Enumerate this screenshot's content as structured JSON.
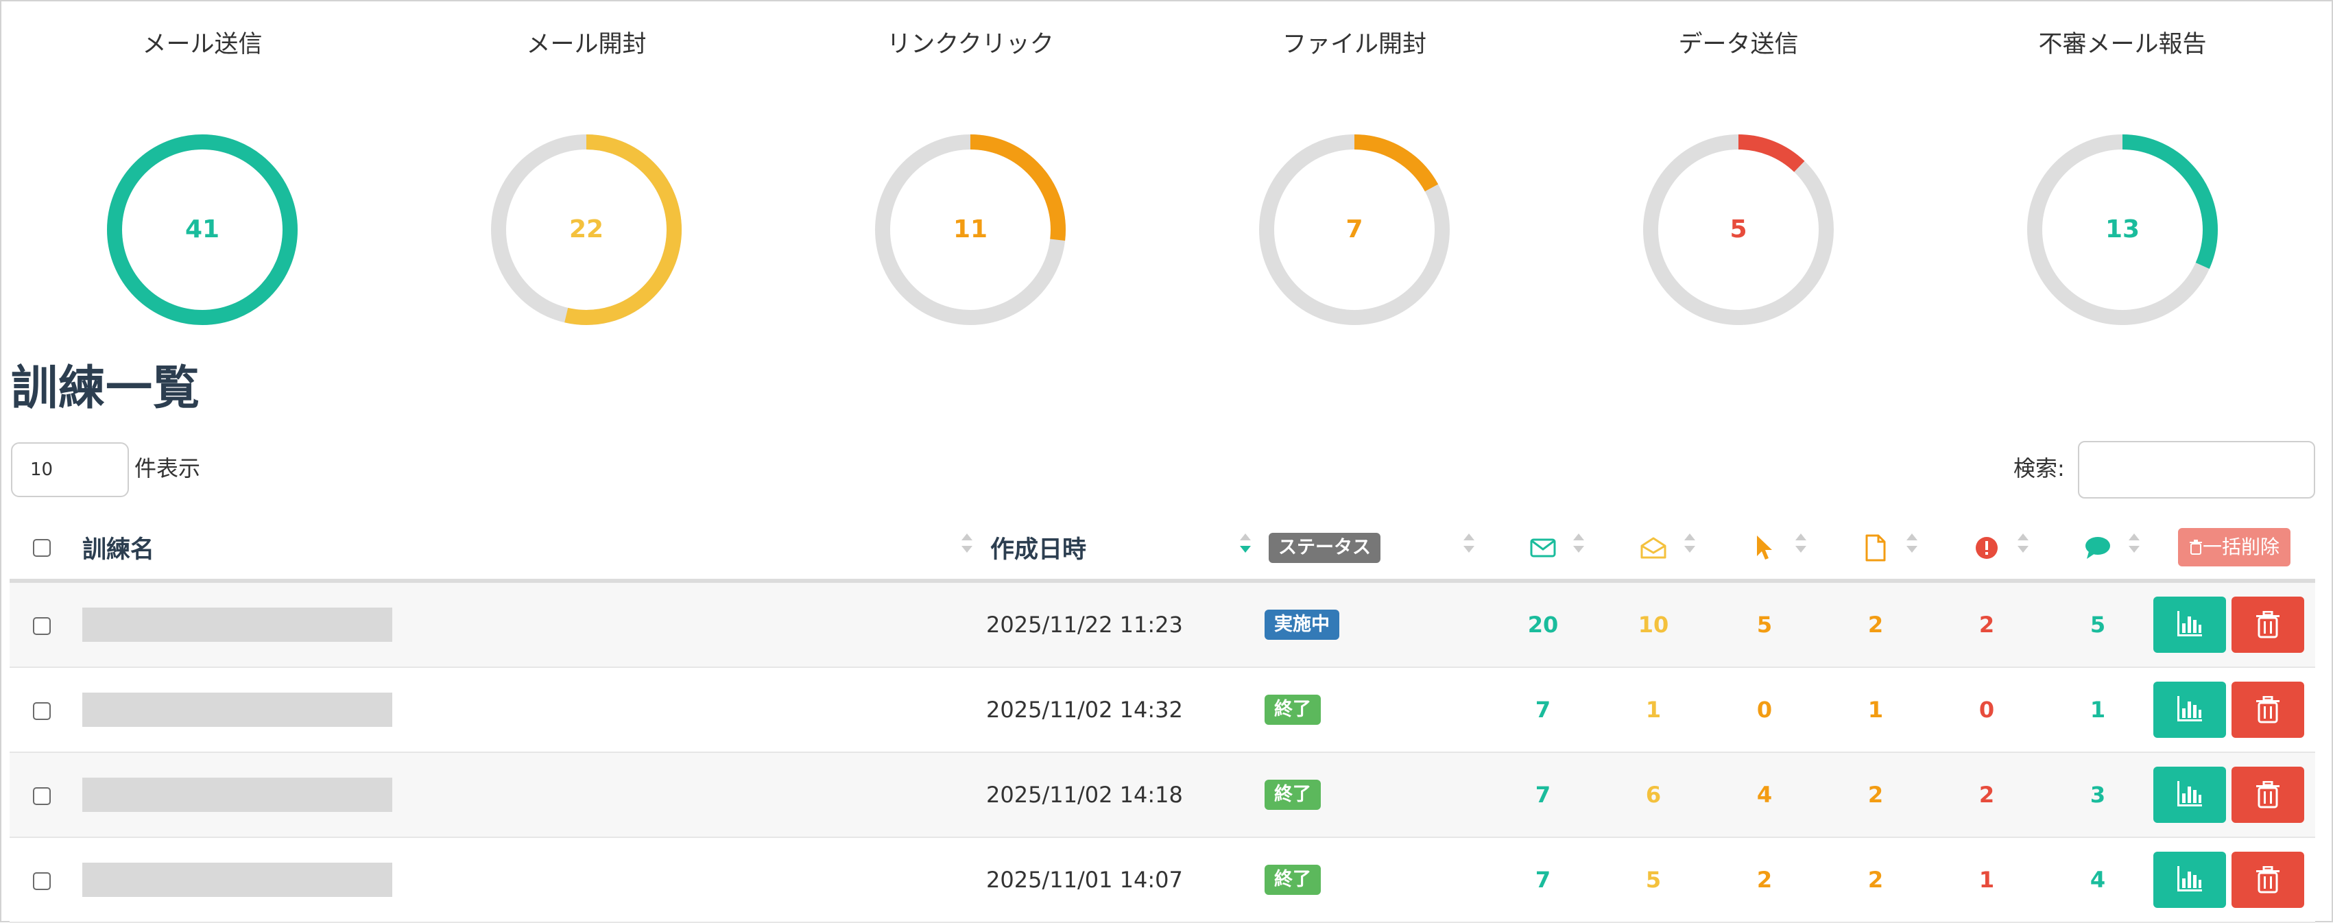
{
  "stats": [
    {
      "title": "メール送信",
      "value": "41",
      "fraction": 1.0,
      "color": "#1abc9c"
    },
    {
      "title": "メール開封",
      "value": "22",
      "fraction": 0.5366,
      "color": "#f4c13d"
    },
    {
      "title": "リンククリック",
      "value": "11",
      "fraction": 0.2683,
      "color": "#f39c12"
    },
    {
      "title": "ファイル開封",
      "value": "7",
      "fraction": 0.1707,
      "color": "#f39c12"
    },
    {
      "title": "データ送信",
      "value": "5",
      "fraction": 0.122,
      "color": "#e74c3c"
    },
    {
      "title": "不審メール報告",
      "value": "13",
      "fraction": 0.3171,
      "color": "#1abc9c"
    }
  ],
  "page_title": "訓練一覧",
  "length": {
    "value": "10",
    "label": "件表示"
  },
  "search": {
    "label": "検索:"
  },
  "table": {
    "headers": {
      "name": "訓練名",
      "created": "作成日時",
      "status": "ステータス",
      "bulk_delete": "一括削除"
    },
    "rows": [
      {
        "created": "2025/11/22 11:23",
        "status": "実施中",
        "status_color": "#337ab7",
        "sent": "20",
        "opened": "10",
        "clicked": "5",
        "file": "2",
        "data": "2",
        "reported": "5"
      },
      {
        "created": "2025/11/02 14:32",
        "status": "終了",
        "status_color": "#5cb85c",
        "sent": "7",
        "opened": "1",
        "clicked": "0",
        "file": "1",
        "data": "0",
        "reported": "1"
      },
      {
        "created": "2025/11/02 14:18",
        "status": "終了",
        "status_color": "#5cb85c",
        "sent": "7",
        "opened": "6",
        "clicked": "4",
        "file": "2",
        "data": "2",
        "reported": "3"
      },
      {
        "created": "2025/11/01 14:07",
        "status": "終了",
        "status_color": "#5cb85c",
        "sent": "7",
        "opened": "5",
        "clicked": "2",
        "file": "2",
        "data": "1",
        "reported": "4"
      }
    ]
  },
  "colors": {
    "teal": "#1abc9c",
    "yellow": "#f4c13d",
    "orange": "#f39c12",
    "red": "#e74c3c",
    "track": "#dedede"
  }
}
